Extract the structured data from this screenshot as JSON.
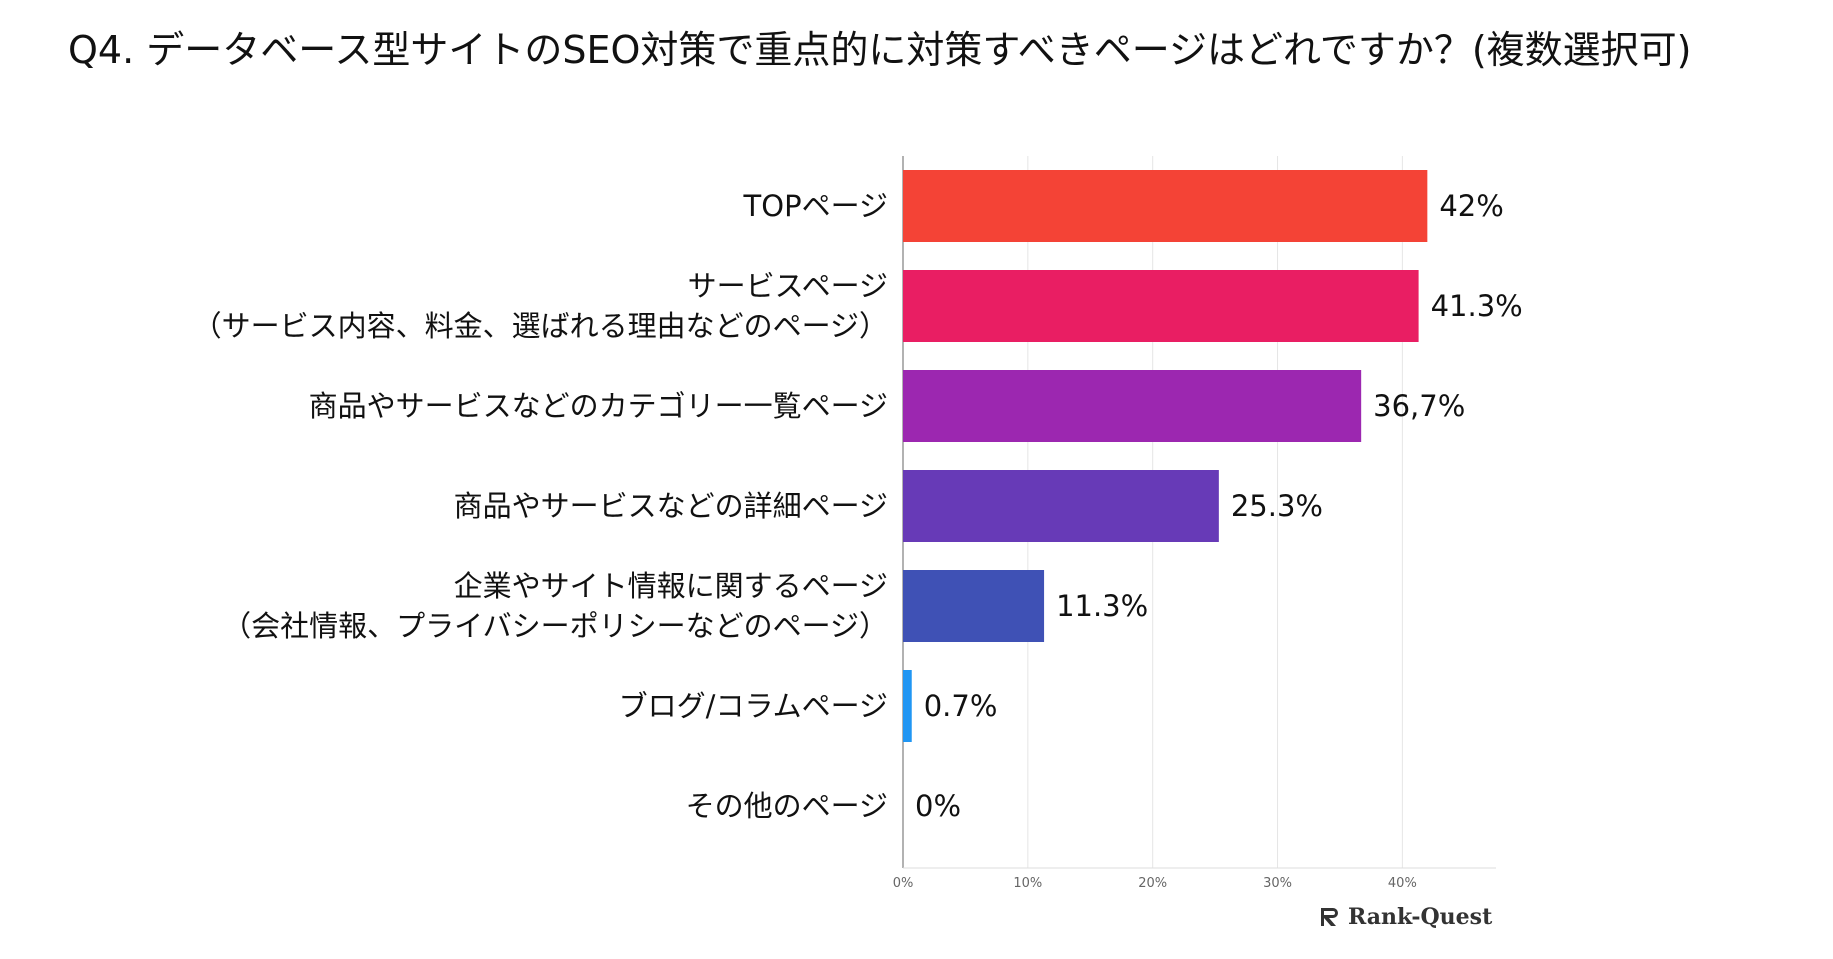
{
  "title": "Q4. データベース型サイトのSEO対策で重点的に対策すべきページはどれですか？(複数選択可)",
  "logo": {
    "text": "Rank-Quest"
  },
  "chart_data": {
    "type": "bar",
    "orientation": "horizontal",
    "categories": [
      [
        "TOPページ"
      ],
      [
        "サービスページ",
        "（サービス内容、料金、選ばれる理由などのページ）"
      ],
      [
        "商品やサービスなどのカテゴリー一覧ページ"
      ],
      [
        "商品やサービスなどの詳細ページ"
      ],
      [
        "企業やサイト情報に関するページ",
        "（会社情報、プライバシーポリシーなどのページ）"
      ],
      [
        "ブログ/コラムページ"
      ],
      [
        "その他のページ"
      ]
    ],
    "values": [
      42,
      41.3,
      36.7,
      25.3,
      11.3,
      0.7,
      0
    ],
    "value_labels": [
      "42%",
      "41.3%",
      "36,7%",
      "25.3%",
      "11.3%",
      "0.7%",
      "0%"
    ],
    "colors": [
      "#f44336",
      "#e91e63",
      "#9c27b0",
      "#673ab7",
      "#3f51b5",
      "#2196f3",
      "#03a9f4"
    ],
    "xlim": [
      0,
      47.5
    ],
    "xticks": [
      0,
      10,
      20,
      30,
      40
    ],
    "xtick_labels": [
      "0%",
      "10%",
      "20%",
      "30%",
      "40%"
    ],
    "grid": true
  }
}
